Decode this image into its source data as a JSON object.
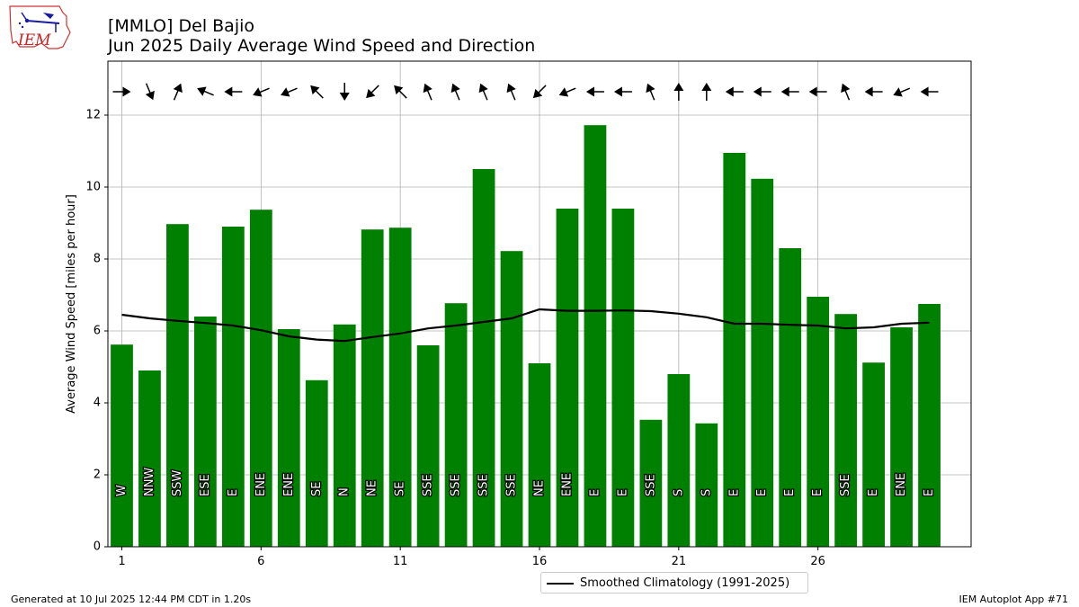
{
  "header": {
    "title_line1": "[MMLO] Del Bajio",
    "title_line2": "Jun 2025 Daily Average Wind Speed and Direction"
  },
  "logo": {
    "text": "IEM"
  },
  "footer": {
    "left": "Generated at 10 Jul 2025 12:44 PM CDT in 1.20s",
    "right": "IEM Autoplot App #71"
  },
  "legend": {
    "climatology_label": "Smoothed Climatology (1991-2025)"
  },
  "colors": {
    "bar": "#008000",
    "climatology": "#000000",
    "grid": "#b0b0b0"
  },
  "chart_data": {
    "type": "bar",
    "ylabel": "Average Wind Speed [miles per hour]",
    "xlabel": "",
    "ylim": [
      0,
      13.5
    ],
    "xlim": [
      0.5,
      31.5
    ],
    "xticks": [
      1,
      6,
      11,
      16,
      21,
      26
    ],
    "yticks": [
      0,
      2,
      4,
      6,
      8,
      10,
      12
    ],
    "grid": true,
    "legend_placement": "bottom-center",
    "x": [
      1,
      2,
      3,
      4,
      5,
      6,
      7,
      8,
      9,
      10,
      11,
      12,
      13,
      14,
      15,
      16,
      17,
      18,
      19,
      20,
      21,
      22,
      23,
      24,
      25,
      26,
      27,
      28,
      29,
      30
    ],
    "values": [
      5.62,
      4.9,
      8.97,
      6.4,
      8.9,
      9.37,
      6.05,
      4.63,
      6.18,
      8.82,
      8.87,
      5.6,
      6.77,
      10.5,
      8.22,
      5.1,
      9.4,
      11.72,
      9.4,
      3.53,
      4.8,
      3.43,
      10.95,
      10.23,
      8.3,
      6.95,
      6.47,
      5.12,
      6.1,
      6.75
    ],
    "directions": [
      "W",
      "NNW",
      "SSW",
      "ESE",
      "E",
      "ENE",
      "ENE",
      "SE",
      "N",
      "NE",
      "SE",
      "SSE",
      "SSE",
      "SSE",
      "SSE",
      "NE",
      "ENE",
      "E",
      "E",
      "SSE",
      "S",
      "S",
      "E",
      "E",
      "E",
      "E",
      "SSE",
      "E",
      "ENE",
      "E"
    ],
    "climatology": [
      6.45,
      6.35,
      6.28,
      6.22,
      6.15,
      6.02,
      5.85,
      5.76,
      5.72,
      5.83,
      5.93,
      6.07,
      6.15,
      6.25,
      6.35,
      6.6,
      6.56,
      6.56,
      6.57,
      6.55,
      6.48,
      6.38,
      6.2,
      6.2,
      6.17,
      6.15,
      6.07,
      6.1,
      6.2,
      6.23
    ]
  }
}
